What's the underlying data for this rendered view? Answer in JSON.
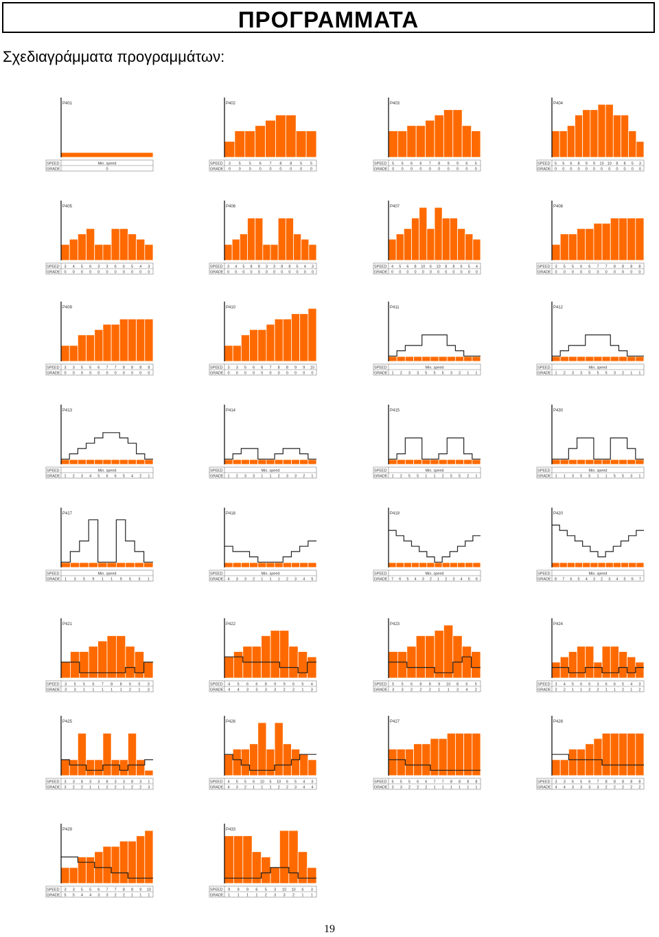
{
  "page": {
    "title": "ΠΡΟΓΡΑΜΜΑΤΑ",
    "subtitle": "Σχεδιαγράμματα προγραμμάτων:",
    "page_number": "19"
  },
  "colors": {
    "bar_fill": "#ff6a00",
    "bar_divider": "#ffffff",
    "incline_line": "#222222",
    "table_text": "#333333"
  },
  "programs": [
    {
      "id": "P401",
      "speed": "Min. speed",
      "incline": [
        0
      ]
    },
    {
      "id": "P402",
      "speed": [
        3,
        5,
        5,
        6,
        7,
        8,
        8,
        5,
        5
      ],
      "incline": [
        0,
        0,
        0,
        0,
        0,
        0,
        0,
        0,
        0
      ]
    },
    {
      "id": "P403",
      "speed": [
        5,
        5,
        6,
        6,
        7,
        8,
        9,
        9,
        6,
        5
      ],
      "incline": [
        0,
        0,
        0,
        0,
        0,
        0,
        0,
        0,
        0,
        0
      ]
    },
    {
      "id": "P404",
      "speed": [
        5,
        5,
        6,
        8,
        9,
        9,
        10,
        10,
        8,
        8,
        5,
        3
      ],
      "incline": [
        0,
        0,
        0,
        0,
        0,
        0,
        0,
        0,
        0,
        0,
        0,
        0
      ]
    },
    {
      "id": "P405",
      "speed": [
        3,
        4,
        5,
        6,
        3,
        3,
        6,
        6,
        5,
        4,
        3
      ],
      "incline": [
        0,
        0,
        0,
        0,
        0,
        0,
        0,
        0,
        0,
        0,
        0
      ]
    },
    {
      "id": "P406",
      "speed": [
        3,
        4,
        5,
        8,
        8,
        3,
        3,
        8,
        8,
        5,
        4,
        3
      ],
      "incline": [
        0,
        0,
        0,
        0,
        0,
        0,
        0,
        0,
        0,
        0,
        0,
        0
      ]
    },
    {
      "id": "P407",
      "speed": [
        4,
        5,
        6,
        8,
        10,
        6,
        10,
        8,
        8,
        6,
        5,
        4
      ],
      "incline": [
        0,
        0,
        0,
        0,
        0,
        0,
        0,
        0,
        0,
        0,
        0,
        0
      ]
    },
    {
      "id": "P408",
      "speed": [
        3,
        5,
        5,
        6,
        6,
        7,
        7,
        8,
        8,
        8,
        8
      ],
      "incline": [
        0,
        0,
        0,
        0,
        0,
        0,
        0,
        0,
        0,
        0,
        0
      ]
    },
    {
      "id": "P409",
      "speed": [
        3,
        3,
        5,
        5,
        6,
        7,
        7,
        8,
        8,
        8,
        8
      ],
      "incline": [
        0,
        0,
        0,
        0,
        0,
        0,
        0,
        0,
        0,
        0,
        0
      ]
    },
    {
      "id": "P410",
      "speed": [
        3,
        3,
        5,
        6,
        6,
        7,
        8,
        8,
        9,
        9,
        10
      ],
      "incline": [
        0,
        0,
        0,
        0,
        0,
        0,
        0,
        0,
        0,
        0,
        0
      ]
    },
    {
      "id": "P411",
      "speed": "Min. speed",
      "incline": [
        1,
        2,
        3,
        3,
        5,
        5,
        5,
        3,
        2,
        1,
        1
      ]
    },
    {
      "id": "P412",
      "speed": "Min. speed",
      "incline": [
        1,
        2,
        3,
        3,
        5,
        5,
        5,
        3,
        2,
        1,
        1
      ]
    },
    {
      "id": "P413",
      "speed": "Min. speed",
      "incline": [
        1,
        2,
        3,
        4,
        5,
        6,
        6,
        5,
        4,
        2,
        1
      ]
    },
    {
      "id": "P414",
      "speed": "Min. speed",
      "incline": [
        1,
        2,
        3,
        3,
        1,
        1,
        2,
        3,
        3,
        2,
        1
      ]
    },
    {
      "id": "P415",
      "speed": "Min. speed",
      "incline": [
        1,
        2,
        5,
        5,
        1,
        1,
        2,
        5,
        5,
        2,
        1
      ]
    },
    {
      "id": "P430",
      "speed": "Min. speed",
      "incline": [
        1,
        1,
        3,
        5,
        5,
        1,
        1,
        5,
        5,
        3,
        1
      ]
    },
    {
      "id": "P417",
      "speed": "Min. speed",
      "incline": [
        1,
        3,
        5,
        9,
        1,
        1,
        9,
        5,
        3,
        1
      ]
    },
    {
      "id": "P418",
      "speed": "Min. speed",
      "incline": [
        4,
        3,
        3,
        2,
        1,
        1,
        1,
        2,
        3,
        4,
        5
      ]
    },
    {
      "id": "P419",
      "speed": "Min. speed",
      "incline": [
        7,
        6,
        5,
        4,
        3,
        2,
        1,
        2,
        3,
        4,
        5,
        6
      ]
    },
    {
      "id": "P420",
      "speed": "Min. speed",
      "incline": [
        8,
        7,
        6,
        5,
        4,
        3,
        2,
        3,
        4,
        5,
        6,
        7
      ]
    },
    {
      "id": "P421",
      "speed": [
        3,
        5,
        5,
        6,
        7,
        8,
        8,
        6,
        5,
        3
      ],
      "incline": [
        3,
        3,
        1,
        1,
        1,
        1,
        1,
        2,
        1,
        3
      ]
    },
    {
      "id": "P422",
      "speed": [
        4,
        5,
        6,
        6,
        8,
        9,
        9,
        6,
        5,
        4
      ],
      "incline": [
        4,
        4,
        3,
        3,
        3,
        3,
        2,
        2,
        1,
        3
      ]
    },
    {
      "id": "P423",
      "speed": [
        5,
        5,
        6,
        8,
        8,
        9,
        10,
        8,
        6,
        5
      ],
      "incline": [
        3,
        3,
        2,
        2,
        2,
        1,
        1,
        3,
        4,
        2
      ]
    },
    {
      "id": "P424",
      "speed": [
        3,
        4,
        5,
        6,
        6,
        3,
        6,
        6,
        5,
        4,
        3
      ],
      "incline": [
        2,
        2,
        1,
        1,
        2,
        2,
        1,
        1,
        2,
        1,
        2
      ]
    },
    {
      "id": "P425",
      "speed": [
        3,
        3,
        8,
        3,
        3,
        8,
        3,
        3,
        8,
        3,
        1
      ],
      "incline": [
        3,
        2,
        2,
        1,
        1,
        2,
        2,
        1,
        2,
        2,
        3
      ]
    },
    {
      "id": "P426",
      "speed": [
        4,
        5,
        5,
        6,
        10,
        5,
        10,
        6,
        5,
        4,
        3
      ],
      "incline": [
        4,
        3,
        2,
        1,
        1,
        1,
        2,
        2,
        3,
        4,
        4
      ]
    },
    {
      "id": "P427",
      "speed": [
        5,
        5,
        5,
        6,
        6,
        7,
        7,
        8,
        8,
        8,
        8
      ],
      "incline": [
        3,
        3,
        2,
        2,
        2,
        1,
        1,
        1,
        1,
        1,
        1
      ]
    },
    {
      "id": "P428",
      "speed": [
        3,
        3,
        5,
        5,
        6,
        7,
        8,
        8,
        8,
        8,
        8
      ],
      "incline": [
        4,
        4,
        3,
        3,
        3,
        3,
        2,
        2,
        2,
        2,
        2
      ]
    },
    {
      "id": "P429",
      "speed": [
        3,
        3,
        5,
        5,
        6,
        7,
        7,
        8,
        8,
        9,
        10
      ],
      "incline": [
        5,
        5,
        4,
        4,
        3,
        3,
        2,
        2,
        1,
        1,
        1
      ]
    },
    {
      "id": "P433",
      "speed": [
        9,
        9,
        9,
        6,
        5,
        3,
        10,
        10,
        6,
        3
      ],
      "incline": [
        1,
        1,
        1,
        1,
        2,
        3,
        3,
        2,
        1,
        1
      ]
    }
  ],
  "table_labels": {
    "speed": "SPEED",
    "grade": "GRADE"
  }
}
